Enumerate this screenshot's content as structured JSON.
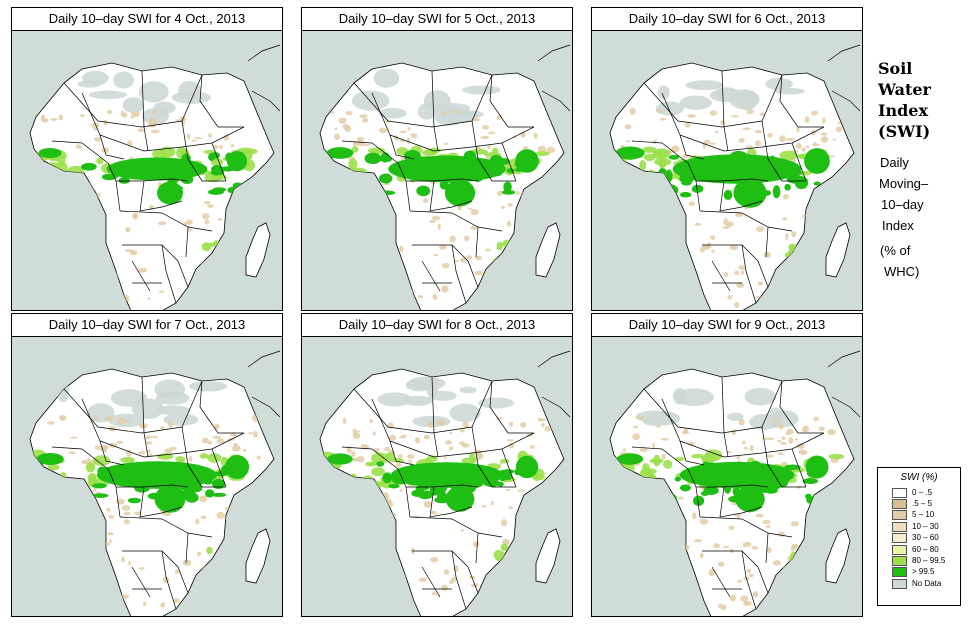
{
  "panels": [
    {
      "title": "Daily 10–day SWI for  4 Oct., 2013",
      "wetness": 0.72
    },
    {
      "title": "Daily 10–day SWI for  5 Oct., 2013",
      "wetness": 0.84
    },
    {
      "title": "Daily 10–day SWI for  6 Oct., 2013",
      "wetness": 0.92
    },
    {
      "title": "Daily 10–day SWI for  7 Oct., 2013",
      "wetness": 0.86
    },
    {
      "title": "Daily 10–day SWI for  8 Oct., 2013",
      "wetness": 0.8
    },
    {
      "title": "Daily 10–day SWI for  9 Oct., 2013",
      "wetness": 0.82
    }
  ],
  "side": {
    "title_lines": [
      "Soil",
      "Water",
      "Index",
      "(SWI)"
    ],
    "subtitle_lines": [
      "Daily",
      "Moving–",
      "10–day",
      "Index"
    ],
    "units_lines": [
      "(% of",
      "WHC)"
    ]
  },
  "legend": {
    "title": "SWI (%)",
    "items": [
      {
        "label": "0 – .5",
        "color": "#ffffff"
      },
      {
        "label": ".5 – 5",
        "color": "#d8bf95"
      },
      {
        "label": "5 – 10",
        "color": "#e3cda6"
      },
      {
        "label": "10 – 30",
        "color": "#efdfbd"
      },
      {
        "label": "30 – 60",
        "color": "#f6edcf"
      },
      {
        "label": "60 – 80",
        "color": "#e6f5a6"
      },
      {
        "label": "80 – 99.5",
        "color": "#9be04a"
      },
      {
        "label": "> 99.5",
        "color": "#1fbe13"
      },
      {
        "label": "No Data",
        "color": "#cdd8d6"
      }
    ]
  },
  "colors": {
    "ocean": "#cfdcd7",
    "land": "#ffffff",
    "dry": "#e3cda6",
    "moist": "#9be04a",
    "wet": "#1fbe13",
    "nodata": "#cdd8d6",
    "border": "#000000"
  }
}
